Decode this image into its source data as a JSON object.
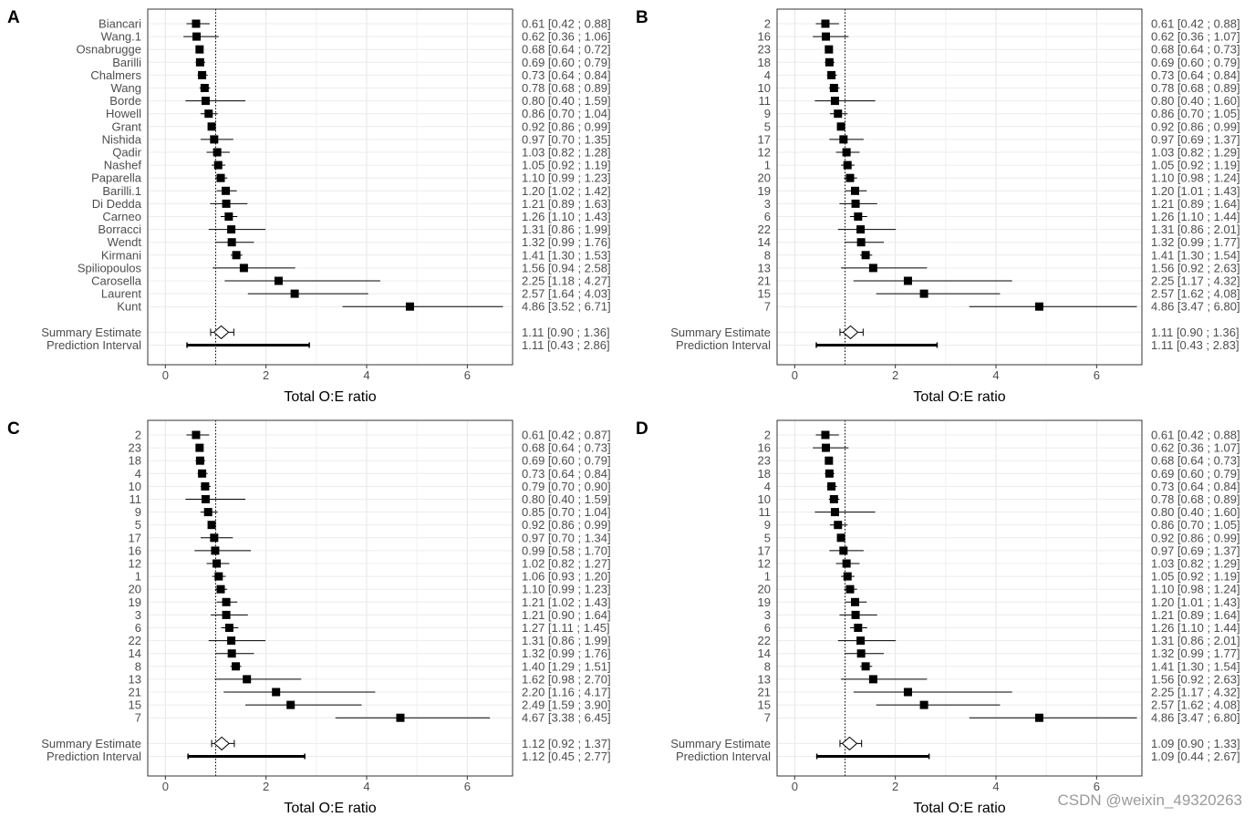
{
  "watermark": "CSDN @weixin_49320263",
  "chart_data": [
    {
      "panel": "A",
      "type": "forest",
      "xlabel": "Total O:E ratio",
      "xlim": [
        -0.35,
        6.9
      ],
      "xticks": [
        0,
        2,
        4,
        6
      ],
      "reference_line": 1,
      "grid": true,
      "studies": [
        {
          "label": "Biancari",
          "est": 0.61,
          "lo": 0.42,
          "hi": 0.88,
          "text": "0.61 [0.42 ; 0.88]"
        },
        {
          "label": "Wang.1",
          "est": 0.62,
          "lo": 0.36,
          "hi": 1.06,
          "text": "0.62 [0.36 ; 1.06]"
        },
        {
          "label": "Osnabrugge",
          "est": 0.68,
          "lo": 0.64,
          "hi": 0.72,
          "text": "0.68 [0.64 ; 0.72]"
        },
        {
          "label": "Barilli",
          "est": 0.69,
          "lo": 0.6,
          "hi": 0.79,
          "text": "0.69 [0.60 ; 0.79]"
        },
        {
          "label": "Chalmers",
          "est": 0.73,
          "lo": 0.64,
          "hi": 0.84,
          "text": "0.73 [0.64 ; 0.84]"
        },
        {
          "label": "Wang",
          "est": 0.78,
          "lo": 0.68,
          "hi": 0.89,
          "text": "0.78 [0.68 ; 0.89]"
        },
        {
          "label": "Borde",
          "est": 0.8,
          "lo": 0.4,
          "hi": 1.59,
          "text": "0.80 [0.40 ; 1.59]"
        },
        {
          "label": "Howell",
          "est": 0.86,
          "lo": 0.7,
          "hi": 1.04,
          "text": "0.86 [0.70 ; 1.04]"
        },
        {
          "label": "Grant",
          "est": 0.92,
          "lo": 0.86,
          "hi": 0.99,
          "text": "0.92 [0.86 ; 0.99]"
        },
        {
          "label": "Nishida",
          "est": 0.97,
          "lo": 0.7,
          "hi": 1.35,
          "text": "0.97 [0.70 ; 1.35]"
        },
        {
          "label": "Qadir",
          "est": 1.03,
          "lo": 0.82,
          "hi": 1.28,
          "text": "1.03 [0.82 ; 1.28]"
        },
        {
          "label": "Nashef",
          "est": 1.05,
          "lo": 0.92,
          "hi": 1.19,
          "text": "1.05 [0.92 ; 1.19]"
        },
        {
          "label": "Paparella",
          "est": 1.1,
          "lo": 0.99,
          "hi": 1.23,
          "text": "1.10 [0.99 ; 1.23]"
        },
        {
          "label": "Barilli.1",
          "est": 1.2,
          "lo": 1.02,
          "hi": 1.42,
          "text": "1.20 [1.02 ; 1.42]"
        },
        {
          "label": "Di Dedda",
          "est": 1.21,
          "lo": 0.89,
          "hi": 1.63,
          "text": "1.21 [0.89 ; 1.63]"
        },
        {
          "label": "Carneo",
          "est": 1.26,
          "lo": 1.1,
          "hi": 1.43,
          "text": "1.26 [1.10 ; 1.43]"
        },
        {
          "label": "Borracci",
          "est": 1.31,
          "lo": 0.86,
          "hi": 1.99,
          "text": "1.31 [0.86 ; 1.99]"
        },
        {
          "label": "Wendt",
          "est": 1.32,
          "lo": 0.99,
          "hi": 1.76,
          "text": "1.32 [0.99 ; 1.76]"
        },
        {
          "label": "Kirmani",
          "est": 1.41,
          "lo": 1.3,
          "hi": 1.53,
          "text": "1.41 [1.30 ; 1.53]"
        },
        {
          "label": "Spiliopoulos",
          "est": 1.56,
          "lo": 0.94,
          "hi": 2.58,
          "text": "1.56 [0.94 ; 2.58]"
        },
        {
          "label": "Carosella",
          "est": 2.25,
          "lo": 1.18,
          "hi": 4.27,
          "text": "2.25 [1.18 ; 4.27]"
        },
        {
          "label": "Laurent",
          "est": 2.57,
          "lo": 1.64,
          "hi": 4.03,
          "text": "2.57 [1.64 ; 4.03]"
        },
        {
          "label": "Kunt",
          "est": 4.86,
          "lo": 3.52,
          "hi": 6.71,
          "text": "4.86 [3.52 ; 6.71]"
        }
      ],
      "summary": {
        "label": "Summary Estimate",
        "est": 1.11,
        "lo": 0.9,
        "hi": 1.36,
        "text": "1.11 [0.90 ; 1.36]"
      },
      "prediction": {
        "label": "Prediction Interval",
        "est": 1.11,
        "lo": 0.43,
        "hi": 2.86,
        "text": "1.11 [0.43 ; 2.86]"
      }
    },
    {
      "panel": "B",
      "type": "forest",
      "xlabel": "Total O:E ratio",
      "xlim": [
        -0.35,
        6.9
      ],
      "xticks": [
        0,
        2,
        4,
        6
      ],
      "reference_line": 1,
      "grid": true,
      "studies": [
        {
          "label": "2",
          "est": 0.61,
          "lo": 0.42,
          "hi": 0.88,
          "text": "0.61 [0.42 ; 0.88]"
        },
        {
          "label": "16",
          "est": 0.62,
          "lo": 0.36,
          "hi": 1.07,
          "text": "0.62 [0.36 ; 1.07]"
        },
        {
          "label": "23",
          "est": 0.68,
          "lo": 0.64,
          "hi": 0.73,
          "text": "0.68 [0.64 ; 0.73]"
        },
        {
          "label": "18",
          "est": 0.69,
          "lo": 0.6,
          "hi": 0.79,
          "text": "0.69 [0.60 ; 0.79]"
        },
        {
          "label": "4",
          "est": 0.73,
          "lo": 0.64,
          "hi": 0.84,
          "text": "0.73 [0.64 ; 0.84]"
        },
        {
          "label": "10",
          "est": 0.78,
          "lo": 0.68,
          "hi": 0.89,
          "text": "0.78 [0.68 ; 0.89]"
        },
        {
          "label": "11",
          "est": 0.8,
          "lo": 0.4,
          "hi": 1.6,
          "text": "0.80 [0.40 ; 1.60]"
        },
        {
          "label": "9",
          "est": 0.86,
          "lo": 0.7,
          "hi": 1.05,
          "text": "0.86 [0.70 ; 1.05]"
        },
        {
          "label": "5",
          "est": 0.92,
          "lo": 0.86,
          "hi": 0.99,
          "text": "0.92 [0.86 ; 0.99]"
        },
        {
          "label": "17",
          "est": 0.97,
          "lo": 0.69,
          "hi": 1.37,
          "text": "0.97 [0.69 ; 1.37]"
        },
        {
          "label": "12",
          "est": 1.03,
          "lo": 0.82,
          "hi": 1.29,
          "text": "1.03 [0.82 ; 1.29]"
        },
        {
          "label": "1",
          "est": 1.05,
          "lo": 0.92,
          "hi": 1.19,
          "text": "1.05 [0.92 ; 1.19]"
        },
        {
          "label": "20",
          "est": 1.1,
          "lo": 0.98,
          "hi": 1.24,
          "text": "1.10 [0.98 ; 1.24]"
        },
        {
          "label": "19",
          "est": 1.2,
          "lo": 1.01,
          "hi": 1.43,
          "text": "1.20 [1.01 ; 1.43]"
        },
        {
          "label": "3",
          "est": 1.21,
          "lo": 0.89,
          "hi": 1.64,
          "text": "1.21 [0.89 ; 1.64]"
        },
        {
          "label": "6",
          "est": 1.26,
          "lo": 1.1,
          "hi": 1.44,
          "text": "1.26 [1.10 ; 1.44]"
        },
        {
          "label": "22",
          "est": 1.31,
          "lo": 0.86,
          "hi": 2.01,
          "text": "1.31 [0.86 ; 2.01]"
        },
        {
          "label": "14",
          "est": 1.32,
          "lo": 0.99,
          "hi": 1.77,
          "text": "1.32 [0.99 ; 1.77]"
        },
        {
          "label": "8",
          "est": 1.41,
          "lo": 1.3,
          "hi": 1.54,
          "text": "1.41 [1.30 ; 1.54]"
        },
        {
          "label": "13",
          "est": 1.56,
          "lo": 0.92,
          "hi": 2.63,
          "text": "1.56 [0.92 ; 2.63]"
        },
        {
          "label": "21",
          "est": 2.25,
          "lo": 1.17,
          "hi": 4.32,
          "text": "2.25 [1.17 ; 4.32]"
        },
        {
          "label": "15",
          "est": 2.57,
          "lo": 1.62,
          "hi": 4.08,
          "text": "2.57 [1.62 ; 4.08]"
        },
        {
          "label": "7",
          "est": 4.86,
          "lo": 3.47,
          "hi": 6.8,
          "text": "4.86 [3.47 ; 6.80]"
        }
      ],
      "summary": {
        "label": "Summary Estimate",
        "est": 1.11,
        "lo": 0.9,
        "hi": 1.36,
        "text": "1.11 [0.90 ; 1.36]"
      },
      "prediction": {
        "label": "Prediction Interval",
        "est": 1.11,
        "lo": 0.43,
        "hi": 2.83,
        "text": "1.11 [0.43 ; 2.83]"
      }
    },
    {
      "panel": "C",
      "type": "forest",
      "xlabel": "Total O:E ratio",
      "xlim": [
        -0.35,
        6.9
      ],
      "xticks": [
        0,
        2,
        4,
        6
      ],
      "reference_line": 1,
      "grid": true,
      "studies": [
        {
          "label": "2",
          "est": 0.61,
          "lo": 0.42,
          "hi": 0.87,
          "text": "0.61 [0.42 ; 0.87]"
        },
        {
          "label": "23",
          "est": 0.68,
          "lo": 0.64,
          "hi": 0.73,
          "text": "0.68 [0.64 ; 0.73]"
        },
        {
          "label": "18",
          "est": 0.69,
          "lo": 0.6,
          "hi": 0.79,
          "text": "0.69 [0.60 ; 0.79]"
        },
        {
          "label": "4",
          "est": 0.73,
          "lo": 0.64,
          "hi": 0.84,
          "text": "0.73 [0.64 ; 0.84]"
        },
        {
          "label": "10",
          "est": 0.79,
          "lo": 0.7,
          "hi": 0.9,
          "text": "0.79 [0.70 ; 0.90]"
        },
        {
          "label": "11",
          "est": 0.8,
          "lo": 0.4,
          "hi": 1.59,
          "text": "0.80 [0.40 ; 1.59]"
        },
        {
          "label": "9",
          "est": 0.85,
          "lo": 0.7,
          "hi": 1.04,
          "text": "0.85 [0.70 ; 1.04]"
        },
        {
          "label": "5",
          "est": 0.92,
          "lo": 0.86,
          "hi": 0.99,
          "text": "0.92 [0.86 ; 0.99]"
        },
        {
          "label": "17",
          "est": 0.97,
          "lo": 0.7,
          "hi": 1.34,
          "text": "0.97 [0.70 ; 1.34]"
        },
        {
          "label": "16",
          "est": 0.99,
          "lo": 0.58,
          "hi": 1.7,
          "text": "0.99 [0.58 ; 1.70]"
        },
        {
          "label": "12",
          "est": 1.02,
          "lo": 0.82,
          "hi": 1.27,
          "text": "1.02 [0.82 ; 1.27]"
        },
        {
          "label": "1",
          "est": 1.06,
          "lo": 0.93,
          "hi": 1.2,
          "text": "1.06 [0.93 ; 1.20]"
        },
        {
          "label": "20",
          "est": 1.1,
          "lo": 0.99,
          "hi": 1.23,
          "text": "1.10 [0.99 ; 1.23]"
        },
        {
          "label": "19",
          "est": 1.21,
          "lo": 1.02,
          "hi": 1.43,
          "text": "1.21 [1.02 ; 1.43]"
        },
        {
          "label": "3",
          "est": 1.21,
          "lo": 0.9,
          "hi": 1.64,
          "text": "1.21 [0.90 ; 1.64]"
        },
        {
          "label": "6",
          "est": 1.27,
          "lo": 1.11,
          "hi": 1.45,
          "text": "1.27 [1.11 ; 1.45]"
        },
        {
          "label": "22",
          "est": 1.31,
          "lo": 0.86,
          "hi": 1.99,
          "text": "1.31 [0.86 ; 1.99]"
        },
        {
          "label": "14",
          "est": 1.32,
          "lo": 0.99,
          "hi": 1.76,
          "text": "1.32 [0.99 ; 1.76]"
        },
        {
          "label": "8",
          "est": 1.4,
          "lo": 1.29,
          "hi": 1.51,
          "text": "1.40 [1.29 ; 1.51]"
        },
        {
          "label": "13",
          "est": 1.62,
          "lo": 0.98,
          "hi": 2.7,
          "text": "1.62 [0.98 ; 2.70]"
        },
        {
          "label": "21",
          "est": 2.2,
          "lo": 1.16,
          "hi": 4.17,
          "text": "2.20 [1.16 ; 4.17]"
        },
        {
          "label": "15",
          "est": 2.49,
          "lo": 1.59,
          "hi": 3.9,
          "text": "2.49 [1.59 ; 3.90]"
        },
        {
          "label": "7",
          "est": 4.67,
          "lo": 3.38,
          "hi": 6.45,
          "text": "4.67 [3.38 ; 6.45]"
        }
      ],
      "summary": {
        "label": "Summary Estimate",
        "est": 1.12,
        "lo": 0.92,
        "hi": 1.37,
        "text": "1.12 [0.92 ; 1.37]"
      },
      "prediction": {
        "label": "Prediction Interval",
        "est": 1.12,
        "lo": 0.45,
        "hi": 2.77,
        "text": "1.12 [0.45 ; 2.77]"
      }
    },
    {
      "panel": "D",
      "type": "forest",
      "xlabel": "Total O:E ratio",
      "xlim": [
        -0.35,
        6.9
      ],
      "xticks": [
        0,
        2,
        4,
        6
      ],
      "reference_line": 1,
      "grid": true,
      "studies": [
        {
          "label": "2",
          "est": 0.61,
          "lo": 0.42,
          "hi": 0.88,
          "text": "0.61 [0.42 ; 0.88]"
        },
        {
          "label": "16",
          "est": 0.62,
          "lo": 0.36,
          "hi": 1.07,
          "text": "0.62 [0.36 ; 1.07]"
        },
        {
          "label": "23",
          "est": 0.68,
          "lo": 0.64,
          "hi": 0.73,
          "text": "0.68 [0.64 ; 0.73]"
        },
        {
          "label": "18",
          "est": 0.69,
          "lo": 0.6,
          "hi": 0.79,
          "text": "0.69 [0.60 ; 0.79]"
        },
        {
          "label": "4",
          "est": 0.73,
          "lo": 0.64,
          "hi": 0.84,
          "text": "0.73 [0.64 ; 0.84]"
        },
        {
          "label": "10",
          "est": 0.78,
          "lo": 0.68,
          "hi": 0.89,
          "text": "0.78 [0.68 ; 0.89]"
        },
        {
          "label": "11",
          "est": 0.8,
          "lo": 0.4,
          "hi": 1.6,
          "text": "0.80 [0.40 ; 1.60]"
        },
        {
          "label": "9",
          "est": 0.86,
          "lo": 0.7,
          "hi": 1.05,
          "text": "0.86 [0.70 ; 1.05]"
        },
        {
          "label": "5",
          "est": 0.92,
          "lo": 0.86,
          "hi": 0.99,
          "text": "0.92 [0.86 ; 0.99]"
        },
        {
          "label": "17",
          "est": 0.97,
          "lo": 0.69,
          "hi": 1.37,
          "text": "0.97 [0.69 ; 1.37]"
        },
        {
          "label": "12",
          "est": 1.03,
          "lo": 0.82,
          "hi": 1.29,
          "text": "1.03 [0.82 ; 1.29]"
        },
        {
          "label": "1",
          "est": 1.05,
          "lo": 0.92,
          "hi": 1.19,
          "text": "1.05 [0.92 ; 1.19]"
        },
        {
          "label": "20",
          "est": 1.1,
          "lo": 0.98,
          "hi": 1.24,
          "text": "1.10 [0.98 ; 1.24]"
        },
        {
          "label": "19",
          "est": 1.2,
          "lo": 1.01,
          "hi": 1.43,
          "text": "1.20 [1.01 ; 1.43]"
        },
        {
          "label": "3",
          "est": 1.21,
          "lo": 0.89,
          "hi": 1.64,
          "text": "1.21 [0.89 ; 1.64]"
        },
        {
          "label": "6",
          "est": 1.26,
          "lo": 1.1,
          "hi": 1.44,
          "text": "1.26 [1.10 ; 1.44]"
        },
        {
          "label": "22",
          "est": 1.31,
          "lo": 0.86,
          "hi": 2.01,
          "text": "1.31 [0.86 ; 2.01]"
        },
        {
          "label": "14",
          "est": 1.32,
          "lo": 0.99,
          "hi": 1.77,
          "text": "1.32 [0.99 ; 1.77]"
        },
        {
          "label": "8",
          "est": 1.41,
          "lo": 1.3,
          "hi": 1.54,
          "text": "1.41 [1.30 ; 1.54]"
        },
        {
          "label": "13",
          "est": 1.56,
          "lo": 0.92,
          "hi": 2.63,
          "text": "1.56 [0.92 ; 2.63]"
        },
        {
          "label": "21",
          "est": 2.25,
          "lo": 1.17,
          "hi": 4.32,
          "text": "2.25 [1.17 ; 4.32]"
        },
        {
          "label": "15",
          "est": 2.57,
          "lo": 1.62,
          "hi": 4.08,
          "text": "2.57 [1.62 ; 4.08]"
        },
        {
          "label": "7",
          "est": 4.86,
          "lo": 3.47,
          "hi": 6.8,
          "text": "4.86 [3.47 ; 6.80]"
        }
      ],
      "summary": {
        "label": "Summary Estimate",
        "est": 1.09,
        "lo": 0.9,
        "hi": 1.33,
        "text": "1.09 [0.90 ; 1.33]"
      },
      "prediction": {
        "label": "Prediction Interval",
        "est": 1.09,
        "lo": 0.44,
        "hi": 2.67,
        "text": "1.09 [0.44 ; 2.67]"
      }
    }
  ]
}
